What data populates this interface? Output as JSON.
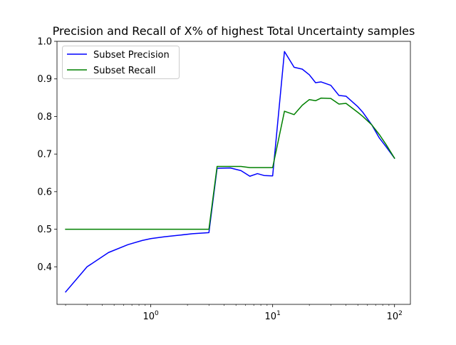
{
  "chart_data": {
    "type": "line",
    "title": "Precision and Recall of X% of highest Total Uncertainty samples",
    "xlabel": "",
    "ylabel": "",
    "xscale": "log",
    "xlim": [
      0.17,
      135
    ],
    "ylim": [
      0.3,
      1.0
    ],
    "x_ticks": [
      {
        "value": 1,
        "base": "10",
        "exp": "0"
      },
      {
        "value": 10,
        "base": "10",
        "exp": "1"
      },
      {
        "value": 100,
        "base": "10",
        "exp": "2"
      }
    ],
    "y_ticks": [
      {
        "value": 0.4,
        "label": "0.4"
      },
      {
        "value": 0.5,
        "label": "0.5"
      },
      {
        "value": 0.6,
        "label": "0.6"
      },
      {
        "value": 0.7,
        "label": "0.7"
      },
      {
        "value": 0.8,
        "label": "0.8"
      },
      {
        "value": 0.9,
        "label": "0.9"
      },
      {
        "value": 1.0,
        "label": "1.0"
      }
    ],
    "grid": false,
    "legend_position": "upper-left",
    "series": [
      {
        "name": "Subset Precision",
        "color": "#0000ff",
        "points": [
          [
            0.2,
            0.333
          ],
          [
            0.3,
            0.4
          ],
          [
            0.45,
            0.438
          ],
          [
            0.65,
            0.459
          ],
          [
            0.85,
            0.47
          ],
          [
            1.0,
            0.475
          ],
          [
            1.3,
            0.48
          ],
          [
            1.7,
            0.484
          ],
          [
            2.2,
            0.488
          ],
          [
            3.0,
            0.491
          ],
          [
            3.5,
            0.662
          ],
          [
            4.5,
            0.663
          ],
          [
            5.5,
            0.656
          ],
          [
            6.5,
            0.641
          ],
          [
            7.5,
            0.648
          ],
          [
            8.5,
            0.643
          ],
          [
            10.0,
            0.642
          ],
          [
            12.5,
            0.973
          ],
          [
            15.0,
            0.931
          ],
          [
            17.5,
            0.926
          ],
          [
            20.0,
            0.911
          ],
          [
            22.5,
            0.89
          ],
          [
            25.0,
            0.892
          ],
          [
            30.0,
            0.883
          ],
          [
            35.0,
            0.856
          ],
          [
            40.0,
            0.854
          ],
          [
            50.0,
            0.826
          ],
          [
            55.0,
            0.811
          ],
          [
            65.0,
            0.778
          ],
          [
            75.0,
            0.743
          ],
          [
            85.0,
            0.72
          ],
          [
            100.0,
            0.689
          ]
        ]
      },
      {
        "name": "Subset Recall",
        "color": "#008000",
        "points": [
          [
            0.2,
            0.5
          ],
          [
            3.0,
            0.5
          ],
          [
            3.5,
            0.667
          ],
          [
            4.5,
            0.667
          ],
          [
            5.5,
            0.667
          ],
          [
            6.5,
            0.664
          ],
          [
            8.0,
            0.664
          ],
          [
            10.0,
            0.664
          ],
          [
            12.5,
            0.814
          ],
          [
            15.0,
            0.805
          ],
          [
            17.5,
            0.83
          ],
          [
            20.0,
            0.845
          ],
          [
            22.5,
            0.842
          ],
          [
            25.0,
            0.849
          ],
          [
            30.0,
            0.848
          ],
          [
            35.0,
            0.833
          ],
          [
            40.0,
            0.835
          ],
          [
            50.0,
            0.811
          ],
          [
            55.0,
            0.8
          ],
          [
            65.0,
            0.778
          ],
          [
            75.0,
            0.752
          ],
          [
            85.0,
            0.726
          ],
          [
            100.0,
            0.689
          ]
        ]
      }
    ]
  }
}
